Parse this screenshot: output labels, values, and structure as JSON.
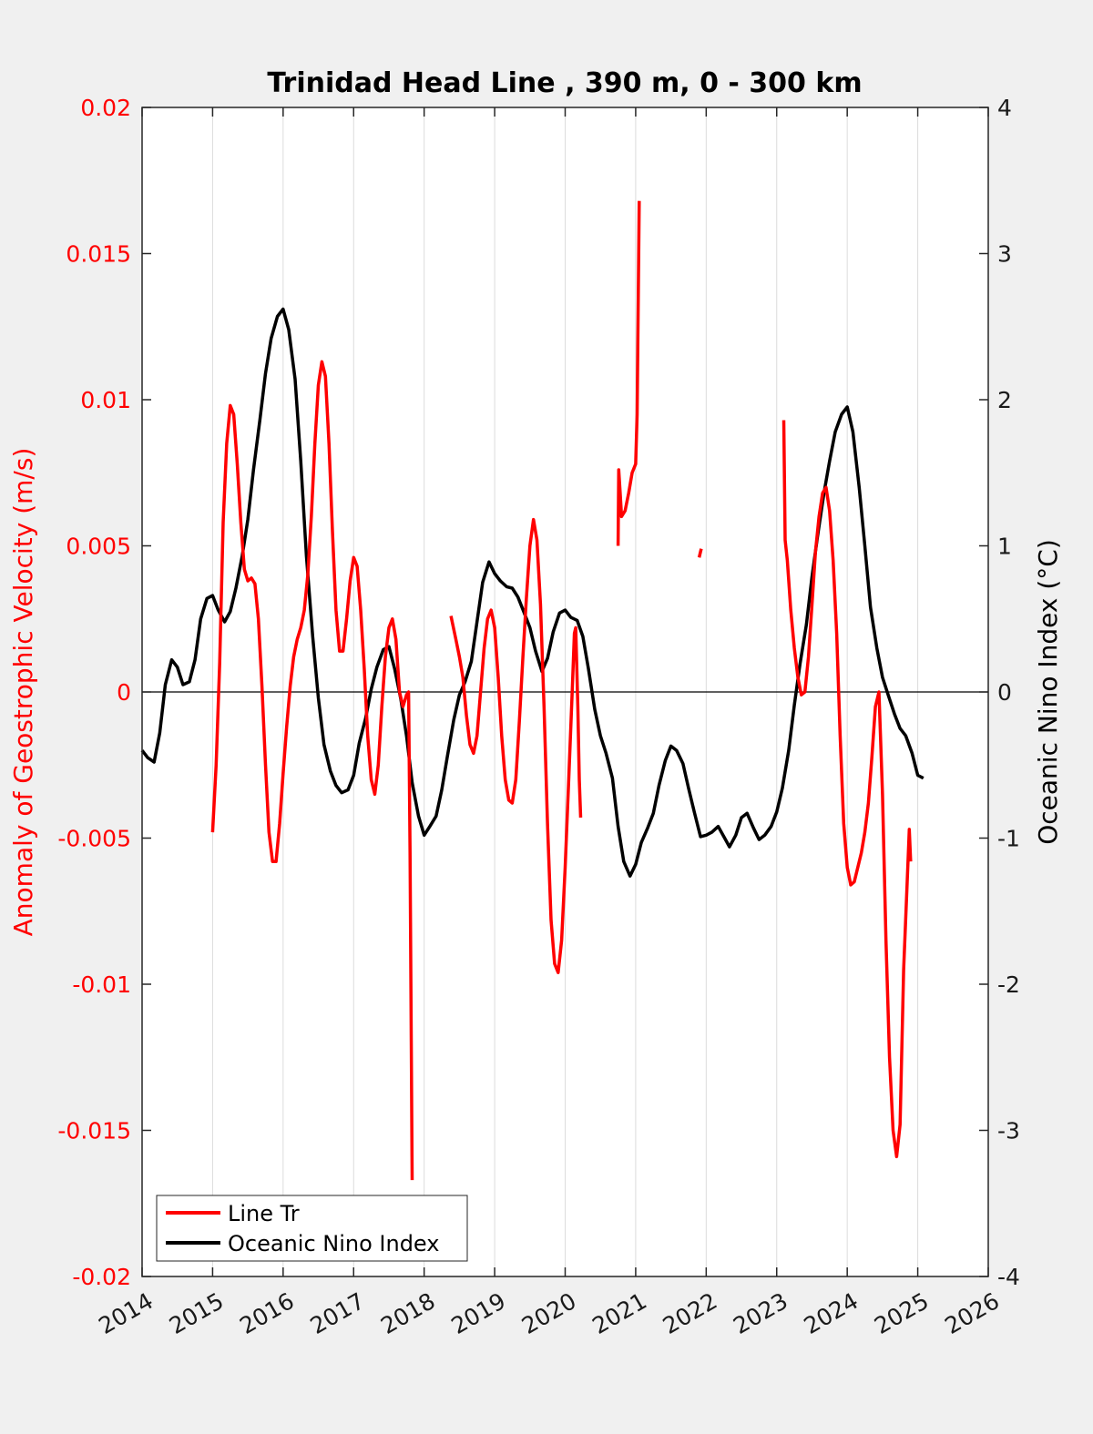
{
  "chart_data": {
    "type": "line",
    "title": "Trinidad Head Line , 390 m, 0 - 300 km",
    "ylabel_left": "Anomaly of Geostrophic Velocity (m/s)",
    "ylabel_right": "Oceanic Nino Index (°C)",
    "xlim": [
      2014,
      2026
    ],
    "ylim_left": [
      -0.02,
      0.02
    ],
    "ylim_right": [
      -4,
      4
    ],
    "grid": "vertical",
    "legend_position": "bottom-left",
    "x_ticks": [
      "2014",
      "2015",
      "2016",
      "2017",
      "2018",
      "2019",
      "2020",
      "2021",
      "2022",
      "2023",
      "2024",
      "2025",
      "2026"
    ],
    "y_ticks_left": [
      "0.02",
      "0.015",
      "0.01",
      "0.005",
      "0",
      "-0.005",
      "-0.01",
      "-0.015",
      "-0.02"
    ],
    "y_ticks_right": [
      "4",
      "3",
      "2",
      "1",
      "0",
      "-1",
      "-2",
      "-3",
      "-4"
    ],
    "colors": {
      "line_tr": "#ff0000",
      "oni": "#000000",
      "zero_line": "#000000",
      "grid": "#dcdcdc"
    },
    "series": [
      {
        "name": "Line Tr",
        "axis": "left",
        "segments": [
          [
            [
              2015.0,
              -0.0048
            ],
            [
              2015.05,
              -0.0025
            ],
            [
              2015.1,
              0.001
            ],
            [
              2015.15,
              0.0058
            ],
            [
              2015.2,
              0.0085
            ],
            [
              2015.25,
              0.0098
            ],
            [
              2015.3,
              0.0095
            ],
            [
              2015.35,
              0.0078
            ],
            [
              2015.4,
              0.0058
            ],
            [
              2015.45,
              0.0042
            ],
            [
              2015.5,
              0.0038
            ],
            [
              2015.55,
              0.0039
            ],
            [
              2015.6,
              0.0037
            ],
            [
              2015.65,
              0.0025
            ],
            [
              2015.7,
              0.0002
            ],
            [
              2015.75,
              -0.0025
            ],
            [
              2015.8,
              -0.0048
            ],
            [
              2015.85,
              -0.0058
            ],
            [
              2015.9,
              -0.0058
            ],
            [
              2015.95,
              -0.0045
            ],
            [
              2016.0,
              -0.0028
            ],
            [
              2016.05,
              -0.0012
            ],
            [
              2016.1,
              0.0002
            ],
            [
              2016.15,
              0.0012
            ],
            [
              2016.2,
              0.0018
            ],
            [
              2016.25,
              0.0022
            ],
            [
              2016.3,
              0.0028
            ],
            [
              2016.35,
              0.004
            ],
            [
              2016.4,
              0.006
            ],
            [
              2016.45,
              0.0085
            ],
            [
              2016.5,
              0.0105
            ],
            [
              2016.55,
              0.0113
            ],
            [
              2016.6,
              0.0108
            ],
            [
              2016.65,
              0.0085
            ],
            [
              2016.7,
              0.0055
            ],
            [
              2016.75,
              0.0028
            ],
            [
              2016.8,
              0.0014
            ],
            [
              2016.85,
              0.0014
            ],
            [
              2016.9,
              0.0025
            ],
            [
              2016.95,
              0.0038
            ],
            [
              2017.0,
              0.0046
            ],
            [
              2017.05,
              0.0043
            ],
            [
              2017.1,
              0.0028
            ],
            [
              2017.15,
              0.0008
            ],
            [
              2017.2,
              -0.0015
            ],
            [
              2017.25,
              -0.003
            ],
            [
              2017.3,
              -0.0035
            ],
            [
              2017.35,
              -0.0025
            ],
            [
              2017.4,
              -0.0005
            ],
            [
              2017.45,
              0.0012
            ],
            [
              2017.5,
              0.0022
            ],
            [
              2017.55,
              0.0025
            ],
            [
              2017.6,
              0.0018
            ],
            [
              2017.65,
              0.0
            ],
            [
              2017.7,
              -0.0005
            ],
            [
              2017.75,
              -0.0001
            ],
            [
              2017.78,
              0.0
            ],
            [
              2017.8,
              -0.0055
            ],
            [
              2017.83,
              -0.0167
            ]
          ],
          [
            [
              2018.38,
              0.0026
            ],
            [
              2018.45,
              0.0018
            ],
            [
              2018.5,
              0.0012
            ],
            [
              2018.55,
              0.0005
            ],
            [
              2018.6,
              -0.0008
            ],
            [
              2018.65,
              -0.0018
            ],
            [
              2018.7,
              -0.0021
            ],
            [
              2018.75,
              -0.0015
            ],
            [
              2018.8,
              0.0
            ],
            [
              2018.85,
              0.0015
            ],
            [
              2018.9,
              0.0025
            ],
            [
              2018.95,
              0.0028
            ],
            [
              2019.0,
              0.0022
            ],
            [
              2019.05,
              0.0005
            ],
            [
              2019.1,
              -0.0015
            ],
            [
              2019.15,
              -0.003
            ],
            [
              2019.2,
              -0.0037
            ],
            [
              2019.25,
              -0.0038
            ],
            [
              2019.3,
              -0.003
            ],
            [
              2019.35,
              -0.001
            ],
            [
              2019.4,
              0.0012
            ],
            [
              2019.45,
              0.0032
            ],
            [
              2019.5,
              0.005
            ],
            [
              2019.55,
              0.0059
            ],
            [
              2019.6,
              0.0052
            ],
            [
              2019.65,
              0.003
            ],
            [
              2019.7,
              -0.0005
            ],
            [
              2019.75,
              -0.0045
            ],
            [
              2019.8,
              -0.0078
            ],
            [
              2019.85,
              -0.0093
            ],
            [
              2019.9,
              -0.0096
            ],
            [
              2019.95,
              -0.0085
            ],
            [
              2020.0,
              -0.006
            ],
            [
              2020.05,
              -0.003
            ],
            [
              2020.1,
              0.0
            ],
            [
              2020.13,
              0.002
            ],
            [
              2020.15,
              0.0022
            ],
            [
              2020.18,
              -0.0005
            ],
            [
              2020.2,
              -0.003
            ],
            [
              2020.22,
              -0.0043
            ]
          ],
          [
            [
              2020.75,
              0.005
            ],
            [
              2020.76,
              0.0076
            ],
            [
              2020.78,
              0.0068
            ],
            [
              2020.8,
              0.006
            ],
            [
              2020.85,
              0.0062
            ],
            [
              2020.9,
              0.0068
            ],
            [
              2020.95,
              0.0075
            ],
            [
              2021.0,
              0.0078
            ],
            [
              2021.02,
              0.0095
            ],
            [
              2021.05,
              0.0168
            ]
          ],
          [
            [
              2021.9,
              0.0046
            ],
            [
              2021.93,
              0.0049
            ]
          ],
          [
            [
              2023.1,
              0.0093
            ],
            [
              2023.12,
              0.0052
            ],
            [
              2023.15,
              0.0045
            ],
            [
              2023.2,
              0.0028
            ],
            [
              2023.25,
              0.0015
            ],
            [
              2023.3,
              0.0005
            ],
            [
              2023.35,
              -0.0001
            ],
            [
              2023.4,
              0.0
            ],
            [
              2023.45,
              0.0012
            ],
            [
              2023.5,
              0.003
            ],
            [
              2023.55,
              0.0048
            ],
            [
              2023.6,
              0.006
            ],
            [
              2023.65,
              0.0068
            ],
            [
              2023.7,
              0.007
            ],
            [
              2023.75,
              0.0062
            ],
            [
              2023.8,
              0.0045
            ],
            [
              2023.85,
              0.002
            ],
            [
              2023.9,
              -0.0015
            ],
            [
              2023.95,
              -0.0045
            ],
            [
              2024.0,
              -0.006
            ],
            [
              2024.05,
              -0.0066
            ],
            [
              2024.1,
              -0.0065
            ],
            [
              2024.15,
              -0.006
            ],
            [
              2024.2,
              -0.0055
            ],
            [
              2024.25,
              -0.0048
            ],
            [
              2024.3,
              -0.0038
            ],
            [
              2024.35,
              -0.0022
            ],
            [
              2024.4,
              -0.0005
            ],
            [
              2024.45,
              0.0
            ],
            [
              2024.5,
              -0.0035
            ],
            [
              2024.55,
              -0.0085
            ],
            [
              2024.6,
              -0.0125
            ],
            [
              2024.65,
              -0.015
            ],
            [
              2024.7,
              -0.0159
            ],
            [
              2024.75,
              -0.0148
            ],
            [
              2024.8,
              -0.0095
            ],
            [
              2024.85,
              -0.0065
            ],
            [
              2024.88,
              -0.0047
            ],
            [
              2024.9,
              -0.0058
            ]
          ]
        ]
      },
      {
        "name": "Oceanic Nino Index",
        "axis": "right",
        "x": [
          2014.0,
          2014.08,
          2014.17,
          2014.25,
          2014.33,
          2014.42,
          2014.5,
          2014.58,
          2014.67,
          2014.75,
          2014.83,
          2014.92,
          2015.0,
          2015.08,
          2015.17,
          2015.25,
          2015.33,
          2015.42,
          2015.5,
          2015.58,
          2015.67,
          2015.75,
          2015.83,
          2015.92,
          2016.0,
          2016.08,
          2016.17,
          2016.25,
          2016.33,
          2016.42,
          2016.5,
          2016.58,
          2016.67,
          2016.75,
          2016.83,
          2016.92,
          2017.0,
          2017.08,
          2017.17,
          2017.25,
          2017.33,
          2017.42,
          2017.5,
          2017.58,
          2017.67,
          2017.75,
          2017.83,
          2017.92,
          2018.0,
          2018.08,
          2018.17,
          2018.25,
          2018.33,
          2018.42,
          2018.5,
          2018.58,
          2018.67,
          2018.75,
          2018.83,
          2018.92,
          2019.0,
          2019.08,
          2019.17,
          2019.25,
          2019.33,
          2019.42,
          2019.5,
          2019.58,
          2019.67,
          2019.75,
          2019.83,
          2019.92,
          2020.0,
          2020.08,
          2020.17,
          2020.25,
          2020.33,
          2020.42,
          2020.5,
          2020.58,
          2020.67,
          2020.75,
          2020.83,
          2020.92,
          2021.0,
          2021.08,
          2021.17,
          2021.25,
          2021.33,
          2021.42,
          2021.5,
          2021.58,
          2021.67,
          2021.75,
          2021.83,
          2021.92,
          2022.0,
          2022.08,
          2022.17,
          2022.25,
          2022.33,
          2022.42,
          2022.5,
          2022.58,
          2022.67,
          2022.75,
          2022.83,
          2022.92,
          2023.0,
          2023.08,
          2023.17,
          2023.25,
          2023.33,
          2023.42,
          2023.5,
          2023.58,
          2023.67,
          2023.75,
          2023.83,
          2023.92,
          2024.0,
          2024.08,
          2024.17,
          2024.25,
          2024.33,
          2024.42,
          2024.5,
          2024.58,
          2024.67,
          2024.75,
          2024.83,
          2024.92,
          2025.0,
          2025.08
        ],
        "values": [
          -0.4,
          -0.45,
          -0.48,
          -0.28,
          0.05,
          0.22,
          0.17,
          0.05,
          0.07,
          0.22,
          0.5,
          0.64,
          0.66,
          0.56,
          0.48,
          0.55,
          0.71,
          0.93,
          1.18,
          1.52,
          1.86,
          2.18,
          2.42,
          2.57,
          2.62,
          2.48,
          2.14,
          1.58,
          0.93,
          0.38,
          -0.04,
          -0.36,
          -0.54,
          -0.64,
          -0.69,
          -0.67,
          -0.57,
          -0.35,
          -0.18,
          0.02,
          0.17,
          0.29,
          0.31,
          0.16,
          -0.05,
          -0.3,
          -0.62,
          -0.85,
          -0.98,
          -0.92,
          -0.85,
          -0.67,
          -0.44,
          -0.19,
          -0.02,
          0.07,
          0.21,
          0.48,
          0.75,
          0.89,
          0.81,
          0.76,
          0.72,
          0.71,
          0.65,
          0.54,
          0.44,
          0.28,
          0.14,
          0.23,
          0.41,
          0.54,
          0.56,
          0.51,
          0.49,
          0.38,
          0.16,
          -0.12,
          -0.3,
          -0.42,
          -0.59,
          -0.92,
          -1.16,
          -1.26,
          -1.18,
          -1.03,
          -0.93,
          -0.83,
          -0.64,
          -0.47,
          -0.37,
          -0.4,
          -0.49,
          -0.66,
          -0.82,
          -0.99,
          -0.98,
          -0.96,
          -0.92,
          -0.99,
          -1.06,
          -0.98,
          -0.86,
          -0.83,
          -0.93,
          -1.01,
          -0.98,
          -0.92,
          -0.82,
          -0.66,
          -0.4,
          -0.09,
          0.19,
          0.46,
          0.79,
          1.07,
          1.36,
          1.58,
          1.78,
          1.9,
          1.95,
          1.78,
          1.4,
          1.0,
          0.58,
          0.3,
          0.1,
          -0.02,
          -0.15,
          -0.25,
          -0.3,
          -0.42,
          -0.57,
          -0.59
        ]
      }
    ]
  }
}
